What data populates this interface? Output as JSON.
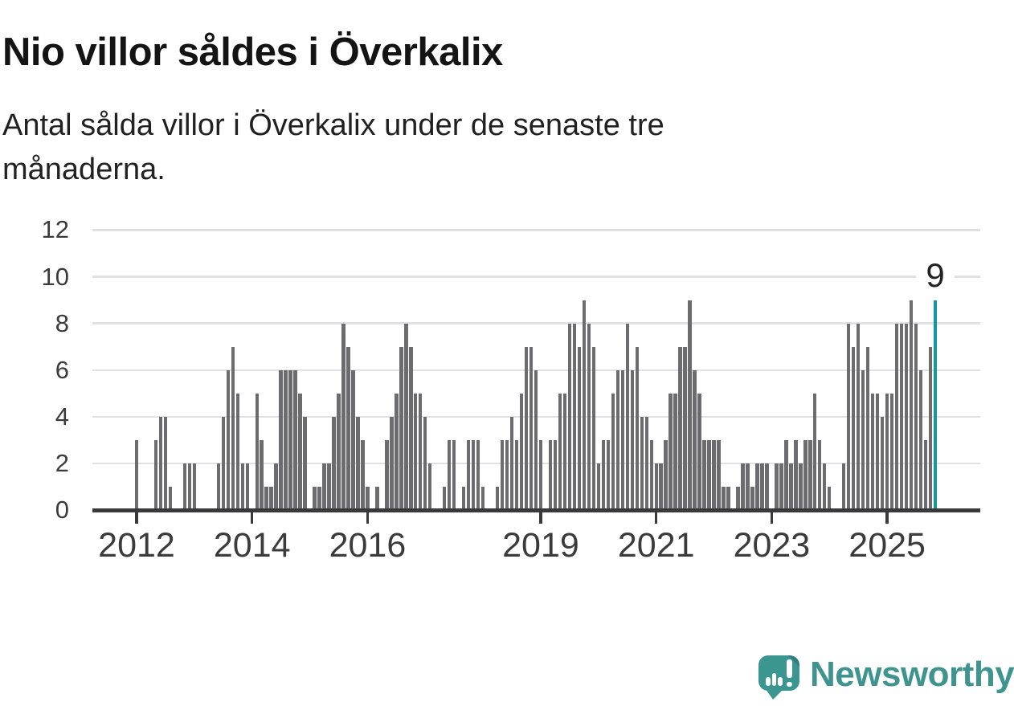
{
  "header": {
    "title": "Nio villor såldes i Överkalix",
    "subtitle_line1": "Antal sålda villor i Överkalix under de senaste tre",
    "subtitle_line2": "månaderna."
  },
  "chart_data": {
    "type": "bar",
    "title": "Nio villor såldes i Överkalix",
    "subtitle": "Antal sålda villor i Överkalix under de senaste tre månaderna.",
    "x_start": "2012-01",
    "x_end": "2025-11",
    "ylim": [
      0,
      12
    ],
    "y_ticks": [
      "0",
      "2",
      "4",
      "6",
      "8",
      "10",
      "12"
    ],
    "grid": true,
    "legend": false,
    "x_ticks": [
      {
        "label": "2012",
        "month_index": 0
      },
      {
        "label": "2014",
        "month_index": 24
      },
      {
        "label": "2016",
        "month_index": 48
      },
      {
        "label": "2019",
        "month_index": 84
      },
      {
        "label": "2021",
        "month_index": 108
      },
      {
        "label": "2023",
        "month_index": 132
      },
      {
        "label": "2025",
        "month_index": 156
      }
    ],
    "values_by_year": {
      "2012": [
        3,
        0,
        0,
        0,
        3,
        4,
        4,
        1,
        0,
        0,
        2,
        2
      ],
      "2013": [
        2,
        0,
        0,
        0,
        0,
        2,
        4,
        6,
        7,
        5,
        2,
        2
      ],
      "2014": [
        0,
        5,
        3,
        1,
        1,
        2,
        6,
        6,
        6,
        6,
        5,
        4
      ],
      "2015": [
        0,
        1,
        1,
        2,
        2,
        4,
        5,
        8,
        7,
        6,
        4,
        3
      ],
      "2016": [
        1,
        0,
        1,
        0,
        3,
        4,
        5,
        7,
        8,
        7,
        5,
        5
      ],
      "2017": [
        4,
        2,
        0,
        0,
        1,
        3,
        3,
        0,
        1,
        3,
        3,
        3
      ],
      "2018": [
        1,
        0,
        0,
        1,
        3,
        3,
        4,
        3,
        5,
        7,
        7,
        6
      ],
      "2019": [
        3,
        0,
        3,
        3,
        5,
        5,
        8,
        8,
        7,
        9,
        8,
        7
      ],
      "2020": [
        2,
        3,
        3,
        5,
        6,
        6,
        8,
        6,
        7,
        4,
        4,
        3
      ],
      "2021": [
        2,
        2,
        3,
        5,
        5,
        7,
        7,
        9,
        6,
        5,
        3,
        3
      ],
      "2022": [
        3,
        3,
        1,
        1,
        0,
        1,
        2,
        2,
        1,
        2,
        2,
        2
      ],
      "2023": [
        0,
        2,
        2,
        3,
        2,
        3,
        2,
        3,
        3,
        5,
        3,
        2
      ],
      "2024": [
        1,
        0,
        0,
        2,
        8,
        7,
        8,
        6,
        7,
        5,
        5,
        4
      ],
      "2025": [
        5,
        5,
        8,
        8,
        8,
        9,
        8,
        6,
        3,
        7,
        9
      ]
    },
    "highlight": {
      "month": "2025-11",
      "value": 9,
      "label": "9"
    },
    "colors": {
      "bar": "#6b6b70",
      "highlight": "#12999b",
      "gridline": "#e1e1e1",
      "axis": "#39393b",
      "tick_label": "#3b3b3b"
    }
  },
  "branding": {
    "logo_text": "Newsworthy",
    "logo_text_color": "#3f948f",
    "logo_icon_color": "#3b9691",
    "logo_icon": "speech-bubble-bar-chart"
  }
}
